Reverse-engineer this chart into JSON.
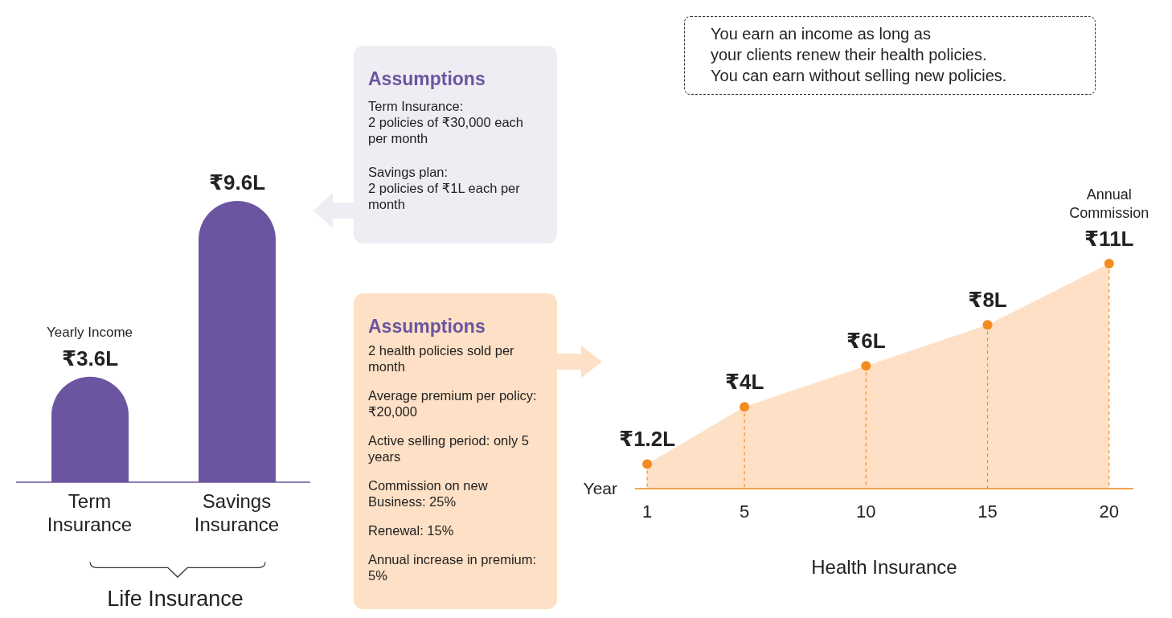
{
  "chart_data": [
    {
      "type": "bar",
      "title": "Life Insurance",
      "categories": [
        "Term Insurance",
        "Savings Insurance"
      ],
      "values": [
        3.6,
        9.6
      ],
      "value_labels": [
        "₹3.6L",
        "₹9.6L"
      ],
      "color": "#6b55a0",
      "tick_labels": "x",
      "annotations": [
        {
          "text": "Yearly Income",
          "x": "Term Insurance",
          "y": 3.6
        }
      ]
    },
    {
      "type": "other",
      "title": "Assumptions",
      "color": "#eeedf3",
      "annotations": [
        "Term Insurance:\n2 policies of ₹30,000 each per month",
        "Savings plan:\n2 policies of ₹1L each per month"
      ]
    },
    {
      "type": "other",
      "title": "Assumptions",
      "color": "#fde0c5",
      "annotations": [
        "2 health policies sold per month",
        "Average premium per policy: ₹20,000",
        "Active selling period: only 5 years",
        "Commission on new Business: 25%",
        "Renewal: 15%",
        "Annual increase in premium: 5%"
      ]
    },
    {
      "type": "area",
      "title": "Health Insurance",
      "xlabel": "Year",
      "x": [
        1,
        5,
        10,
        15,
        20
      ],
      "values": [
        1.2,
        4,
        6,
        8,
        11
      ],
      "value_labels": [
        "₹1.2L",
        "₹4L",
        "₹6L",
        "₹8L",
        "₹11L"
      ],
      "color": "#fde0c5",
      "marker": "circle",
      "xlim": [
        0.5,
        21
      ],
      "xticks": [
        1,
        5,
        10,
        15,
        20
      ],
      "tick_labels": "x",
      "annotations": [
        {
          "text": "Annual Commission",
          "x": 20,
          "y": 11
        },
        "You earn an income as long as\nyour clients renew their health policies.\nYou can earn without selling new policies."
      ]
    }
  ]
}
